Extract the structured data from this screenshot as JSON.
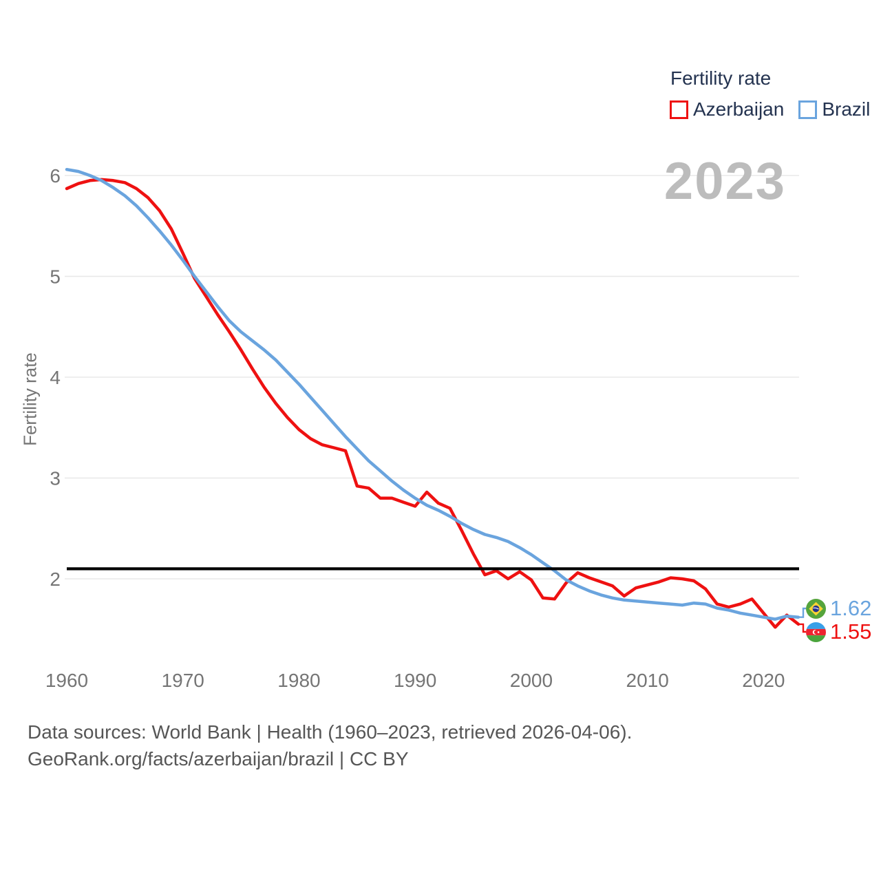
{
  "legend": {
    "title": "Fertility rate",
    "items": [
      {
        "label": "Azerbaijan",
        "color": "#ee1111"
      },
      {
        "label": "Brazil",
        "color": "#6aa4de"
      }
    ]
  },
  "watermark": "2023",
  "axes": {
    "y_label": "Fertility rate",
    "y_ticks": [
      6,
      5,
      4,
      3,
      2
    ],
    "x_ticks": [
      1960,
      1970,
      1980,
      1990,
      2000,
      2010,
      2020
    ]
  },
  "reference_line": {
    "value": 2.1,
    "color": "#000000"
  },
  "end_labels": [
    {
      "series": "Brazil",
      "value": "1.62",
      "flag": "brazil-flag",
      "color": "#6aa4de"
    },
    {
      "series": "Azerbaijan",
      "value": "1.55",
      "flag": "azerbaijan-flag",
      "color": "#ee1111"
    }
  ],
  "footer": {
    "line1": "Data sources: World Bank | Health (1960–2023, retrieved 2026-04-06).",
    "line2": "GeoRank.org/facts/azerbaijan/brazil | CC BY"
  },
  "chart_data": {
    "type": "line",
    "title": "Fertility rate",
    "xlabel": "",
    "ylabel": "Fertility rate",
    "xlim": [
      1960,
      2023
    ],
    "ylim": [
      1.3,
      6.15
    ],
    "grid": "horizontal",
    "legend_position": "top-right",
    "reference_line": 2.1,
    "x": [
      1960,
      1961,
      1962,
      1963,
      1964,
      1965,
      1966,
      1967,
      1968,
      1969,
      1970,
      1971,
      1972,
      1973,
      1974,
      1975,
      1976,
      1977,
      1978,
      1979,
      1980,
      1981,
      1982,
      1983,
      1984,
      1985,
      1986,
      1987,
      1988,
      1989,
      1990,
      1991,
      1992,
      1993,
      1994,
      1995,
      1996,
      1997,
      1998,
      1999,
      2000,
      2001,
      2002,
      2003,
      2004,
      2005,
      2006,
      2007,
      2008,
      2009,
      2010,
      2011,
      2012,
      2013,
      2014,
      2015,
      2016,
      2017,
      2018,
      2019,
      2020,
      2021,
      2022,
      2023
    ],
    "series": [
      {
        "name": "Azerbaijan",
        "color": "#ee1111",
        "end_value": 1.55,
        "values": [
          5.87,
          5.92,
          5.95,
          5.96,
          5.95,
          5.93,
          5.87,
          5.78,
          5.65,
          5.47,
          5.23,
          4.98,
          4.8,
          4.62,
          4.45,
          4.27,
          4.08,
          3.9,
          3.74,
          3.6,
          3.48,
          3.39,
          3.33,
          3.3,
          3.27,
          2.92,
          2.9,
          2.8,
          2.8,
          2.76,
          2.72,
          2.86,
          2.75,
          2.7,
          2.48,
          2.25,
          2.04,
          2.08,
          2.0,
          2.07,
          1.99,
          1.81,
          1.8,
          1.96,
          2.06,
          2.01,
          1.97,
          1.93,
          1.83,
          1.91,
          1.94,
          1.97,
          2.01,
          2.0,
          1.98,
          1.9,
          1.75,
          1.72,
          1.75,
          1.8,
          1.66,
          1.52,
          1.64,
          1.55
        ]
      },
      {
        "name": "Brazil",
        "color": "#6aa4de",
        "end_value": 1.62,
        "values": [
          6.06,
          6.04,
          6.0,
          5.95,
          5.88,
          5.8,
          5.7,
          5.58,
          5.45,
          5.31,
          5.16,
          5.0,
          4.85,
          4.7,
          4.56,
          4.45,
          4.36,
          4.27,
          4.17,
          4.05,
          3.93,
          3.8,
          3.67,
          3.54,
          3.41,
          3.29,
          3.17,
          3.07,
          2.97,
          2.88,
          2.8,
          2.73,
          2.68,
          2.62,
          2.55,
          2.49,
          2.44,
          2.41,
          2.37,
          2.31,
          2.24,
          2.16,
          2.08,
          1.99,
          1.93,
          1.88,
          1.84,
          1.81,
          1.79,
          1.78,
          1.77,
          1.76,
          1.75,
          1.74,
          1.76,
          1.75,
          1.71,
          1.69,
          1.66,
          1.64,
          1.62,
          1.6,
          1.63,
          1.62
        ]
      }
    ]
  }
}
